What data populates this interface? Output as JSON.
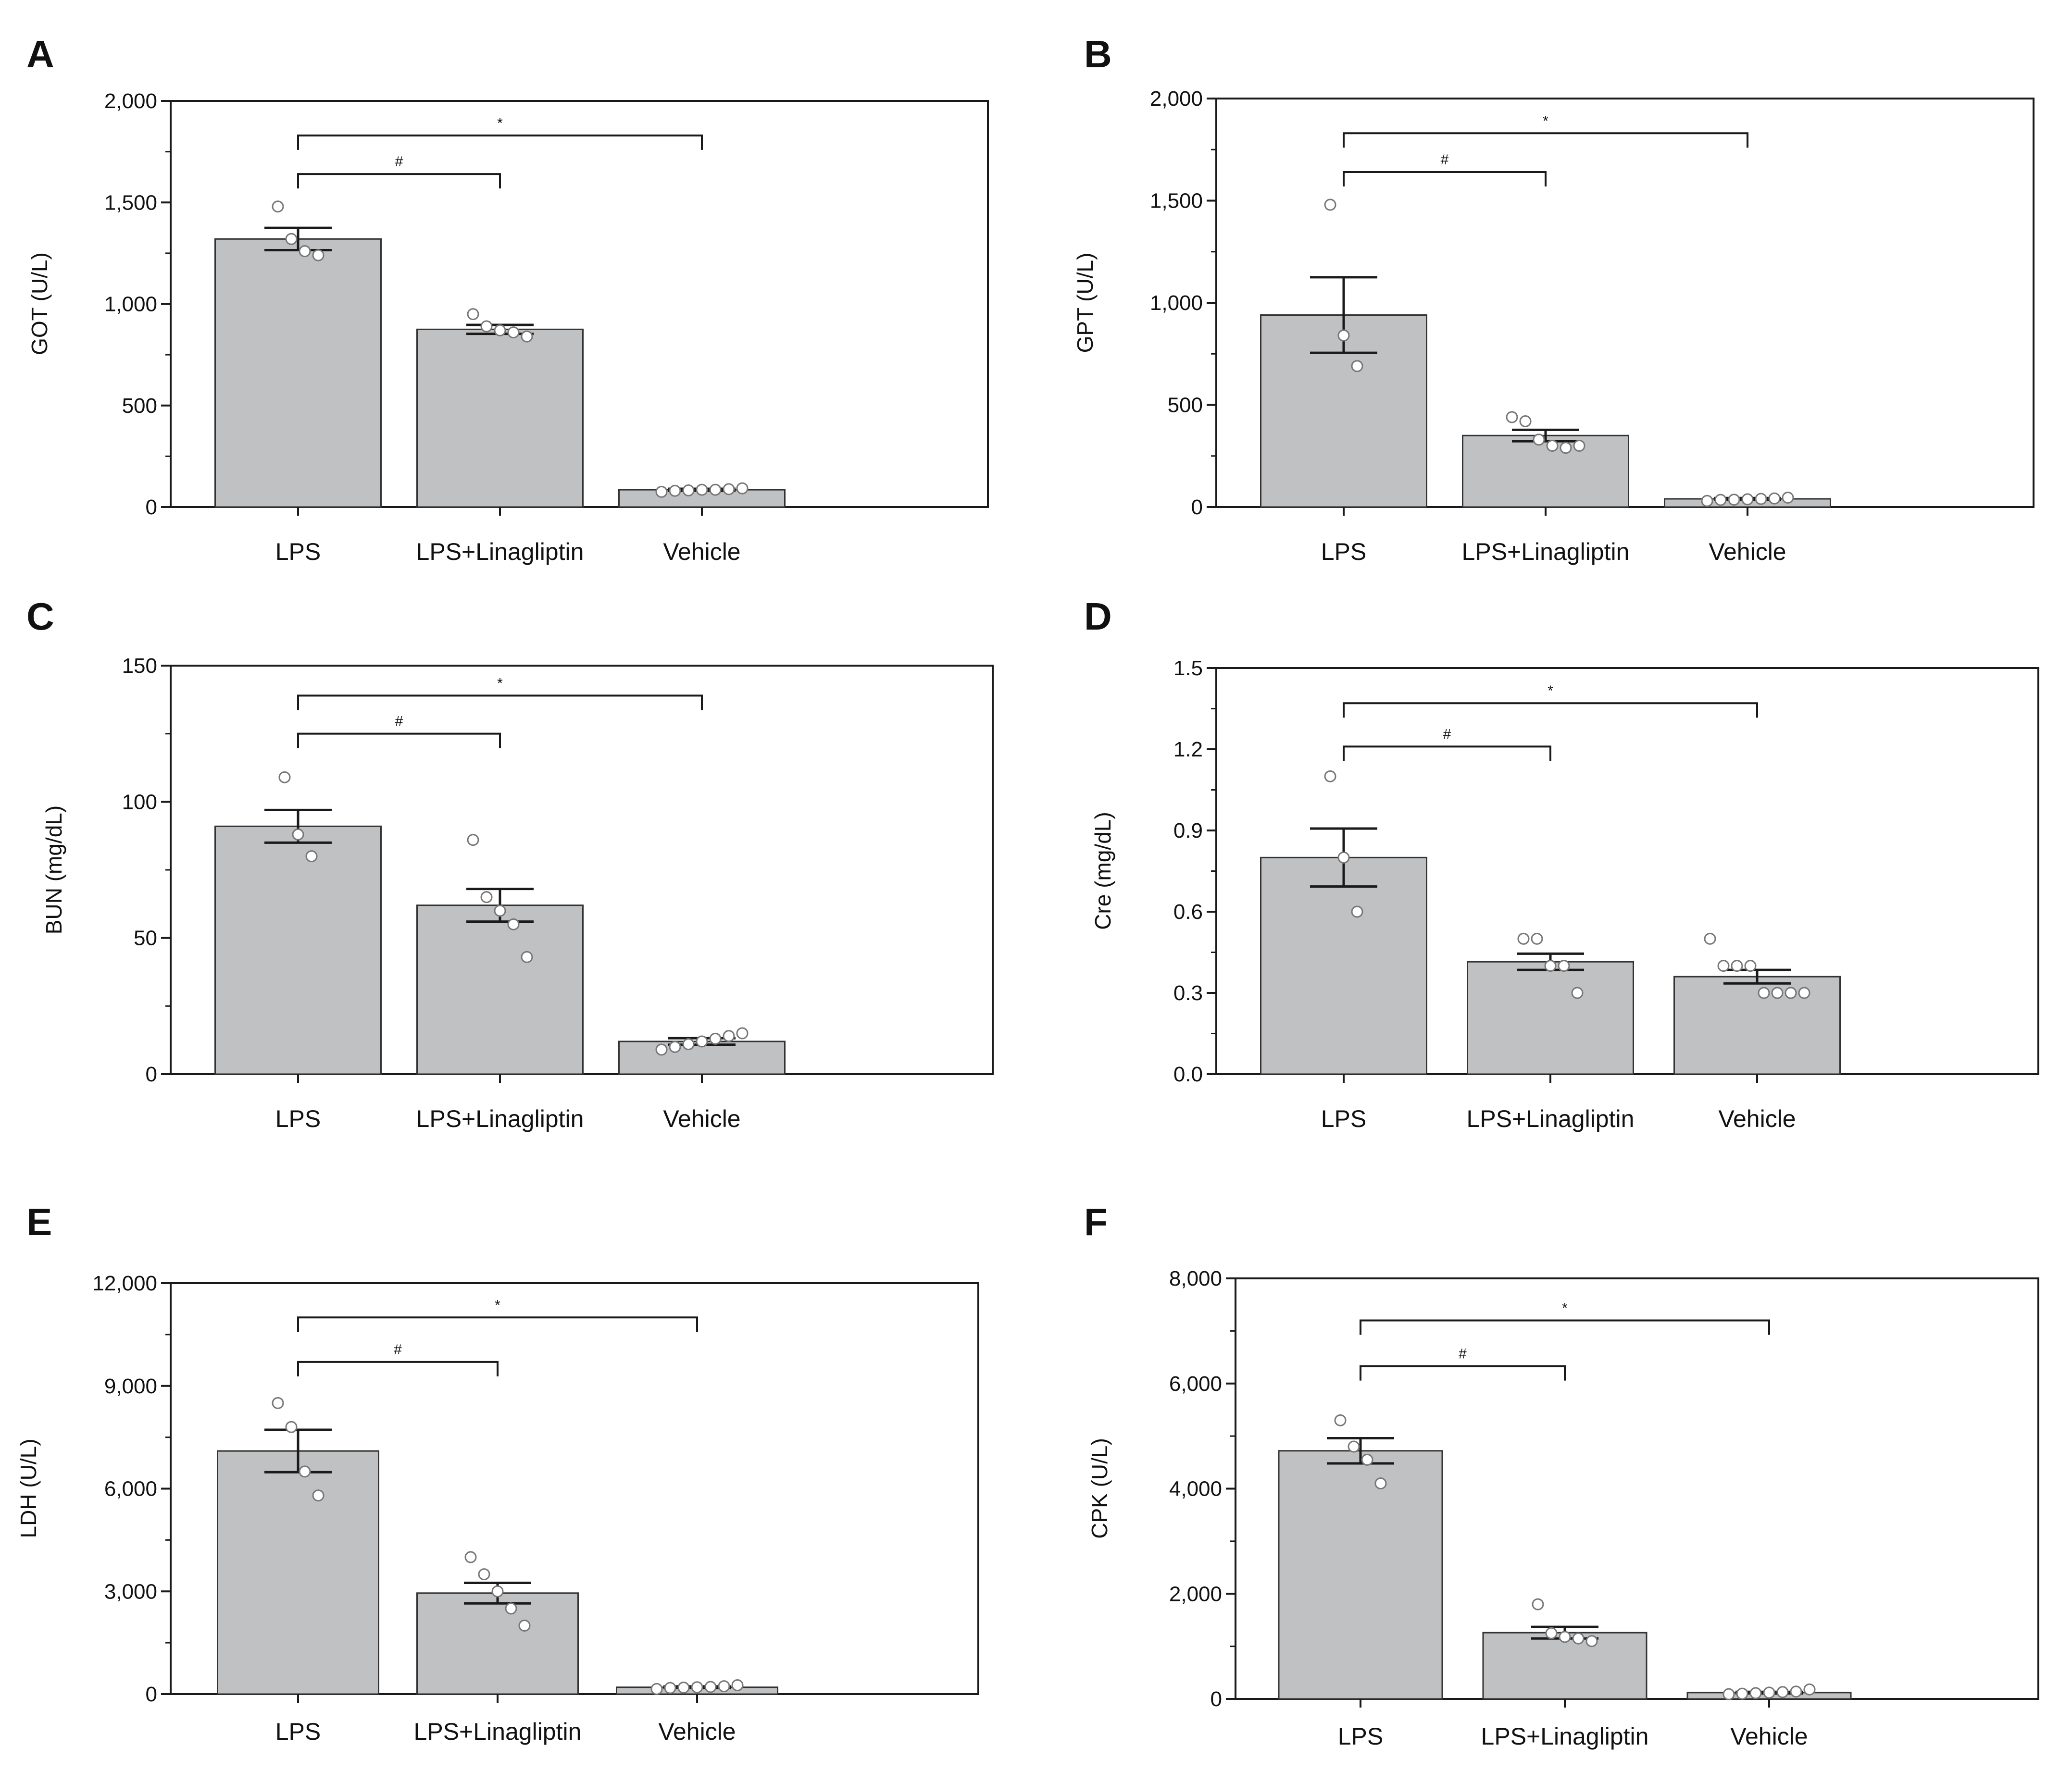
{
  "figure": {
    "colors": {
      "bar": "#bfc1c3",
      "stroke": "#1a1a1a",
      "point_fill": "#ffffff",
      "point_stroke": "#777777"
    }
  },
  "chart_data": [
    {
      "panel": "A",
      "type": "bar",
      "ylabel": "GOT (U/L)",
      "categories": [
        "LPS",
        "LPS+Linagliptin",
        "Vehicle"
      ],
      "values": [
        1320,
        875,
        85
      ],
      "errors": [
        55,
        22,
        5
      ],
      "ylim": [
        0,
        2000
      ],
      "major_ticks": [
        0,
        500,
        1000,
        1500,
        2000
      ],
      "tick_labels": [
        "0",
        "500",
        "1,000",
        "1,500",
        "2,000"
      ],
      "minor_ticks": true,
      "points": [
        [
          1480,
          1320,
          1260,
          1240
        ],
        [
          950,
          890,
          870,
          860,
          840
        ],
        [
          75,
          80,
          82,
          85,
          85,
          88,
          92
        ]
      ],
      "significance": [
        {
          "from": 0,
          "to": 1,
          "symbol": "#",
          "y": 1640
        },
        {
          "from": 0,
          "to": 2,
          "symbol": "*",
          "y": 1830
        }
      ]
    },
    {
      "panel": "B",
      "type": "bar",
      "ylabel": "GPT (U/L)",
      "categories": [
        "LPS",
        "LPS+Linagliptin",
        "Vehicle"
      ],
      "values": [
        940,
        350,
        40
      ],
      "errors": [
        185,
        28,
        4
      ],
      "ylim": [
        0,
        2000
      ],
      "major_ticks": [
        0,
        500,
        1000,
        1500,
        2000
      ],
      "tick_labels": [
        "0",
        "500",
        "1,000",
        "1,500",
        "2,000"
      ],
      "minor_ticks": true,
      "points": [
        [
          1480,
          840,
          690
        ],
        [
          440,
          420,
          330,
          300,
          290,
          300
        ],
        [
          30,
          35,
          36,
          38,
          40,
          42,
          46
        ]
      ],
      "significance": [
        {
          "from": 0,
          "to": 1,
          "symbol": "#",
          "y": 1640
        },
        {
          "from": 0,
          "to": 2,
          "symbol": "*",
          "y": 1830
        }
      ]
    },
    {
      "panel": "C",
      "type": "bar",
      "ylabel": "BUN (mg/dL)",
      "categories": [
        "LPS",
        "LPS+Linagliptin",
        "Vehicle"
      ],
      "values": [
        91,
        62,
        12
      ],
      "errors": [
        6,
        6,
        1.2
      ],
      "ylim": [
        0,
        150
      ],
      "major_ticks": [
        0,
        50,
        100,
        150
      ],
      "tick_labels": [
        "0",
        "50",
        "100",
        "150"
      ],
      "minor_ticks": true,
      "points": [
        [
          109,
          88,
          80
        ],
        [
          86,
          65,
          60,
          55,
          43
        ],
        [
          9,
          10,
          11,
          12,
          13,
          14,
          15
        ]
      ],
      "significance": [
        {
          "from": 0,
          "to": 1,
          "symbol": "#",
          "y": 125
        },
        {
          "from": 0,
          "to": 2,
          "symbol": "*",
          "y": 139
        }
      ]
    },
    {
      "panel": "D",
      "type": "bar",
      "ylabel": "Cre (mg/dL)",
      "categories": [
        "LPS",
        "LPS+Linagliptin",
        "Vehicle"
      ],
      "values": [
        0.8,
        0.415,
        0.36
      ],
      "errors": [
        0.107,
        0.03,
        0.025
      ],
      "ylim": [
        0,
        1.5
      ],
      "major_ticks": [
        0,
        0.3,
        0.6,
        0.9,
        1.2,
        1.5
      ],
      "tick_labels": [
        "0.0",
        "0.3",
        "0.6",
        "0.9",
        "1.2",
        "1.5"
      ],
      "minor_ticks": true,
      "points": [
        [
          1.1,
          0.8,
          0.6
        ],
        [
          0.5,
          0.5,
          0.4,
          0.4,
          0.3
        ],
        [
          0.5,
          0.4,
          0.4,
          0.4,
          0.3,
          0.3,
          0.3,
          0.3
        ]
      ],
      "significance": [
        {
          "from": 0,
          "to": 1,
          "symbol": "#",
          "y": 1.21
        },
        {
          "from": 0,
          "to": 2,
          "symbol": "*",
          "y": 1.37
        }
      ]
    },
    {
      "panel": "E",
      "type": "bar",
      "ylabel": "LDH (U/L)",
      "categories": [
        "LPS",
        "LPS+Linagliptin",
        "Vehicle"
      ],
      "values": [
        7100,
        2950,
        200
      ],
      "errors": [
        620,
        300,
        25
      ],
      "ylim": [
        0,
        12000
      ],
      "major_ticks": [
        0,
        3000,
        6000,
        9000,
        12000
      ],
      "tick_labels": [
        "0",
        "3,000",
        "6,000",
        "9,000",
        "12,000"
      ],
      "minor_ticks": true,
      "points": [
        [
          8500,
          7800,
          6500,
          5800
        ],
        [
          4000,
          3500,
          3000,
          2500,
          2000
        ],
        [
          150,
          180,
          190,
          200,
          210,
          230,
          260
        ]
      ],
      "significance": [
        {
          "from": 0,
          "to": 1,
          "symbol": "#",
          "y": 9700
        },
        {
          "from": 0,
          "to": 2,
          "symbol": "*",
          "y": 11000
        }
      ]
    },
    {
      "panel": "F",
      "type": "bar",
      "ylabel": "CPK (U/L)",
      "categories": [
        "LPS",
        "LPS+Linagliptin",
        "Vehicle"
      ],
      "values": [
        4720,
        1260,
        120
      ],
      "errors": [
        240,
        110,
        15
      ],
      "ylim": [
        0,
        8000
      ],
      "major_ticks": [
        0,
        2000,
        4000,
        6000,
        8000
      ],
      "tick_labels": [
        "0",
        "2,000",
        "4,000",
        "6,000",
        "8,000"
      ],
      "minor_ticks": true,
      "points": [
        [
          5300,
          4800,
          4550,
          4100
        ],
        [
          1800,
          1250,
          1180,
          1150,
          1100
        ],
        [
          90,
          100,
          110,
          120,
          130,
          140,
          180
        ]
      ],
      "significance": [
        {
          "from": 0,
          "to": 1,
          "symbol": "#",
          "y": 6330
        },
        {
          "from": 0,
          "to": 2,
          "symbol": "*",
          "y": 7200
        }
      ]
    }
  ]
}
